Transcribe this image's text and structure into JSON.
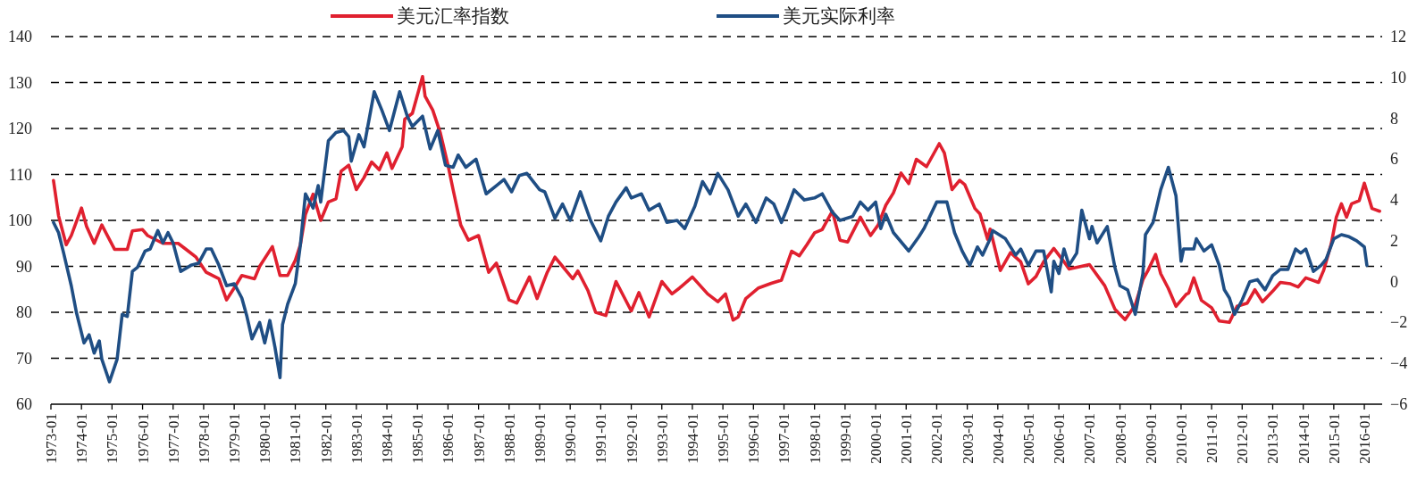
{
  "chart_data": {
    "type": "line",
    "legend": "top",
    "grid": "y",
    "line_style": "solid",
    "marker": "none",
    "xlim": [
      "1973-01",
      "2016-08"
    ],
    "xticks": [
      "1973-01",
      "1974-01",
      "1975-01",
      "1976-01",
      "1977-01",
      "1978-01",
      "1979-01",
      "1980-01",
      "1981-01",
      "1982-01",
      "1983-01",
      "1984-01",
      "1985-01",
      "1986-01",
      "1987-01",
      "1988-01",
      "1989-01",
      "1990-01",
      "1991-01",
      "1992-01",
      "1993-01",
      "1994-01",
      "1995-01",
      "1996-01",
      "1997-01",
      "1998-01",
      "1999-01",
      "2000-01",
      "2001-01",
      "2002-01",
      "2003-01",
      "2004-01",
      "2005-01",
      "2006-01",
      "2007-01",
      "2008-01",
      "2009-01",
      "2010-01",
      "2011-01",
      "2012-01",
      "2013-01",
      "2014-01",
      "2015-01",
      "2016-01"
    ],
    "ylim": [
      60,
      140
    ],
    "yticks": [
      60,
      70,
      80,
      90,
      100,
      110,
      120,
      130,
      140
    ],
    "y2lim": [
      -6,
      12
    ],
    "y2ticks": [
      -6,
      -4,
      -2,
      0,
      2,
      4,
      6,
      8,
      10,
      12
    ],
    "series": [
      {
        "name": "美元汇率指数",
        "color": "#e0202f",
        "x": [
          "1973-02",
          "1973-04",
          "1973-07",
          "1973-09",
          "1974-01",
          "1974-03",
          "1974-06",
          "1974-09",
          "1975-02",
          "1975-07",
          "1975-09",
          "1976-01",
          "1976-03",
          "1976-09",
          "1977-03",
          "1977-07",
          "1977-10",
          "1978-02",
          "1978-07",
          "1978-10",
          "1979-01",
          "1979-04",
          "1979-09",
          "1979-11",
          "1980-04",
          "1980-07",
          "1980-10",
          "1981-01",
          "1981-03",
          "1981-05",
          "1981-08",
          "1981-11",
          "1982-02",
          "1982-05",
          "1982-07",
          "1982-10",
          "1983-01",
          "1983-04",
          "1983-07",
          "1983-10",
          "1984-01",
          "1984-03",
          "1984-07",
          "1984-08",
          "1984-11",
          "1985-03",
          "1985-04",
          "1985-07",
          "1985-10",
          "1986-01",
          "1986-03",
          "1986-06",
          "1986-09",
          "1987-01",
          "1987-05",
          "1987-08",
          "1988-01",
          "1988-04",
          "1988-09",
          "1988-12",
          "1989-04",
          "1989-07",
          "1989-10",
          "1990-02",
          "1990-04",
          "1990-08",
          "1990-11",
          "1991-03",
          "1991-07",
          "1992-01",
          "1992-04",
          "1992-08",
          "1993-01",
          "1993-05",
          "1993-08",
          "1994-01",
          "1994-07",
          "1994-11",
          "1995-02",
          "1995-05",
          "1995-07",
          "1995-10",
          "1996-03",
          "1996-08",
          "1996-12",
          "1997-04",
          "1997-07",
          "1997-10",
          "1998-01",
          "1998-04",
          "1998-08",
          "1998-11",
          "1999-02",
          "1999-07",
          "1999-11",
          "2000-02",
          "2000-05",
          "2000-08",
          "2000-11",
          "2001-02",
          "2001-05",
          "2001-09",
          "2002-02",
          "2002-04",
          "2002-07",
          "2002-10",
          "2002-12",
          "2003-04",
          "2003-06",
          "2003-09",
          "2003-10",
          "2004-02",
          "2004-06",
          "2004-10",
          "2005-01",
          "2005-04",
          "2005-07",
          "2005-11",
          "2006-03",
          "2006-05",
          "2007-01",
          "2007-07",
          "2007-11",
          "2008-03",
          "2008-07",
          "2008-10",
          "2008-12",
          "2009-03",
          "2009-05",
          "2009-08",
          "2009-11",
          "2010-03",
          "2010-04",
          "2010-06",
          "2010-09",
          "2011-01",
          "2011-04",
          "2011-08",
          "2011-11",
          "2012-03",
          "2012-06",
          "2012-09",
          "2013-01",
          "2013-04",
          "2013-08",
          "2013-11",
          "2014-02",
          "2014-07",
          "2014-09",
          "2014-12",
          "2015-02",
          "2015-04",
          "2015-06",
          "2015-08",
          "2015-11",
          "2016-01",
          "2016-04",
          "2016-07"
        ],
        "values": [
          108.7,
          101,
          94.7,
          96.7,
          102.7,
          98.7,
          95,
          99,
          93.7,
          93.7,
          97.7,
          98,
          96.7,
          95,
          95,
          93.3,
          92,
          88.7,
          87.3,
          82.7,
          85.3,
          88,
          87.3,
          90,
          94.3,
          88,
          88,
          91.3,
          94.7,
          101.3,
          105.7,
          100,
          104,
          104.7,
          110.7,
          112,
          106.7,
          109.3,
          112.7,
          111,
          114.7,
          111.3,
          116,
          122,
          123.3,
          131.3,
          127,
          124,
          119,
          112,
          106.7,
          99,
          95.7,
          96.7,
          88.7,
          90.7,
          82.7,
          82,
          87.7,
          83,
          88.7,
          92,
          90,
          87.3,
          89,
          84.7,
          80,
          79.3,
          86.7,
          80.3,
          84.3,
          79,
          86.7,
          84,
          85.3,
          87.7,
          84,
          82.3,
          84,
          78.3,
          79,
          83,
          85.3,
          86.3,
          87,
          93.3,
          92.3,
          94.7,
          97.3,
          98,
          102,
          95.7,
          95.3,
          100.7,
          96.7,
          99,
          103.3,
          106,
          110.3,
          108,
          113.3,
          111.7,
          116.7,
          114.7,
          106.7,
          108.7,
          107.8,
          102.6,
          101.4,
          95.9,
          98.1,
          89.1,
          93,
          91,
          86.2,
          87.8,
          91,
          93.9,
          91,
          89.4,
          90.4,
          85.8,
          80.7,
          78.4,
          81.6,
          87.1,
          89.1,
          92.6,
          88.4,
          85.2,
          81.3,
          83.9,
          84.2,
          87.5,
          82.6,
          81,
          78.1,
          77.8,
          81.3,
          82,
          84.9,
          82.3,
          84.6,
          86.5,
          86.2,
          85.5,
          87.5,
          86.5,
          89.1,
          94.9,
          100.7,
          103.6,
          100.7,
          103.6,
          104.3,
          108.1,
          102.6,
          102
        ]
      },
      {
        "name": "美元实际利率",
        "color": "#1f4e84",
        "axis": "y2",
        "x": [
          "1973-02",
          "1973-04",
          "1973-06",
          "1973-09",
          "1973-11",
          "1974-02",
          "1974-04",
          "1974-06",
          "1974-08",
          "1974-09",
          "1974-12",
          "1975-03",
          "1975-05",
          "1975-07",
          "1975-09",
          "1975-11",
          "1976-02",
          "1976-04",
          "1976-07",
          "1976-09",
          "1976-11",
          "1977-01",
          "1977-04",
          "1977-08",
          "1977-11",
          "1978-02",
          "1978-04",
          "1978-07",
          "1978-10",
          "1979-01",
          "1979-04",
          "1979-06",
          "1979-08",
          "1979-11",
          "1980-01",
          "1980-03",
          "1980-05",
          "1980-07",
          "1980-08",
          "1980-10",
          "1981-01",
          "1981-03",
          "1981-05",
          "1981-08",
          "1981-10",
          "1981-11",
          "1982-02",
          "1982-05",
          "1982-08",
          "1982-10",
          "1982-11",
          "1983-02",
          "1983-04",
          "1983-08",
          "1983-11",
          "1984-02",
          "1984-06",
          "1984-09",
          "1984-11",
          "1985-03",
          "1985-06",
          "1985-09",
          "1985-12",
          "1986-03",
          "1986-05",
          "1986-08",
          "1986-12",
          "1987-04",
          "1987-08",
          "1987-11",
          "1988-02",
          "1988-05",
          "1988-08",
          "1989-01",
          "1989-03",
          "1989-07",
          "1989-10",
          "1990-01",
          "1990-05",
          "1990-09",
          "1991-01",
          "1991-04",
          "1991-07",
          "1991-11",
          "1992-01",
          "1992-05",
          "1992-08",
          "1992-12",
          "1993-03",
          "1993-07",
          "1993-10",
          "1994-02",
          "1994-05",
          "1994-08",
          "1994-11",
          "1995-03",
          "1995-07",
          "1995-10",
          "1996-02",
          "1996-06",
          "1996-09",
          "1996-12",
          "1997-02",
          "1997-05",
          "1997-09",
          "1998-01",
          "1998-04",
          "1998-08",
          "1998-11",
          "1999-04",
          "1999-07",
          "1999-10",
          "2000-01",
          "2000-03",
          "2000-05",
          "2000-08",
          "2001-02",
          "2001-06",
          "2001-08",
          "2002-01",
          "2002-05",
          "2002-08",
          "2002-11",
          "2003-02",
          "2003-05",
          "2003-07",
          "2003-10",
          "2003-11",
          "2004-04",
          "2004-08",
          "2004-10",
          "2005-01",
          "2005-04",
          "2005-07",
          "2005-10",
          "2005-11",
          "2006-01",
          "2006-03",
          "2006-05",
          "2006-08",
          "2006-10",
          "2007-01",
          "2007-02",
          "2007-04",
          "2007-08",
          "2007-11",
          "2008-01",
          "2008-04",
          "2008-07",
          "2008-10",
          "2008-11",
          "2009-02",
          "2009-05",
          "2009-08",
          "2009-11",
          "2010-01",
          "2010-02",
          "2010-06",
          "2010-07",
          "2010-10",
          "2011-01",
          "2011-04",
          "2011-06",
          "2011-08",
          "2011-10",
          "2012-01",
          "2012-04",
          "2012-07",
          "2012-10",
          "2013-01",
          "2013-04",
          "2013-07",
          "2013-10",
          "2013-12",
          "2014-02",
          "2014-05",
          "2014-08",
          "2014-10",
          "2015-01",
          "2015-04",
          "2015-07",
          "2015-10",
          "2016-01",
          "2016-02"
        ],
        "values": [
          2.9,
          2.4,
          1.4,
          -0.2,
          -1.5,
          -3,
          -2.6,
          -3.5,
          -2.9,
          -3.8,
          -4.9,
          -3.8,
          -1.6,
          -1.7,
          0.5,
          0.7,
          1.5,
          1.6,
          2.5,
          1.9,
          2.4,
          1.9,
          0.5,
          0.8,
          0.9,
          1.6,
          1.6,
          0.8,
          -0.2,
          -0.1,
          -0.8,
          -1.7,
          -2.8,
          -2,
          -3,
          -1.9,
          -3.2,
          -4.7,
          -2.1,
          -1.1,
          -0.1,
          1.8,
          4.3,
          3.6,
          4.7,
          3.9,
          6.9,
          7.3,
          7.4,
          7.1,
          5.9,
          7.2,
          6.6,
          9.3,
          8.4,
          7.4,
          9.3,
          8.1,
          7.6,
          8.1,
          6.5,
          7.4,
          5.7,
          5.6,
          6.2,
          5.6,
          6,
          4.3,
          4.7,
          5,
          4.4,
          5.2,
          5.3,
          4.5,
          4.4,
          3.1,
          3.8,
          3,
          4.4,
          3,
          2,
          3.2,
          3.9,
          4.6,
          4.1,
          4.3,
          3.5,
          3.8,
          2.9,
          3,
          2.6,
          3.7,
          4.9,
          4.3,
          5.3,
          4.5,
          3.2,
          3.8,
          2.9,
          4.1,
          3.8,
          2.9,
          3.5,
          4.5,
          4,
          4.1,
          4.3,
          3.4,
          3,
          3.2,
          3.9,
          3.5,
          3.9,
          2.6,
          3.3,
          2.4,
          1.5,
          2.2,
          2.6,
          3.9,
          3.9,
          2.4,
          1.5,
          0.8,
          1.7,
          1.3,
          2.1,
          2.5,
          2.1,
          1.3,
          1.6,
          0.8,
          1.5,
          1.5,
          -0.5,
          1,
          0.4,
          1.6,
          0.8,
          1.4,
          3.5,
          2.1,
          2.7,
          1.9,
          2.7,
          0.7,
          -0.2,
          -0.4,
          -1.6,
          0.4,
          2.3,
          2.9,
          4.5,
          5.6,
          4.2,
          1,
          1.6,
          1.6,
          2.1,
          1.5,
          1.8,
          0.8,
          -0.4,
          -0.8,
          -1.6,
          -0.9,
          0,
          0.1,
          -0.4,
          0.3,
          0.6,
          0.6,
          1.6,
          1.4,
          1.6,
          0.5,
          0.8,
          1.1,
          2.1,
          2.3,
          2.2,
          2,
          1.7,
          0.8
        ]
      }
    ]
  }
}
